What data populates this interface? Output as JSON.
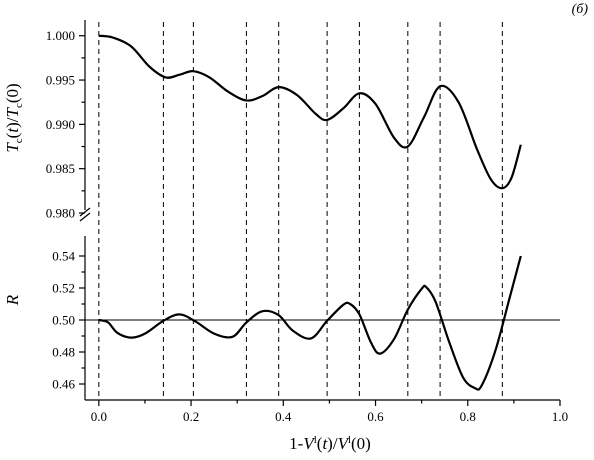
{
  "chart_data": {
    "type": "line",
    "panel_label": "(б)",
    "xlabel": "1-V^l(t)/V^l(0)",
    "x_ticks": [
      0.0,
      0.2,
      0.4,
      0.6,
      0.8,
      1.0
    ],
    "x_tick_labels": [
      "0.0",
      "0.2",
      "0.4",
      "0.6",
      "0.8",
      "1.0"
    ],
    "xlim": [
      -0.03,
      1.0
    ],
    "vertical_dashed_lines_x": [
      0.0,
      0.14,
      0.205,
      0.32,
      0.39,
      0.495,
      0.565,
      0.67,
      0.74,
      0.875
    ],
    "top_panel": {
      "ylabel": "T_c(t)/T_c(0)",
      "ylim": [
        0.98,
        1.002
      ],
      "y_ticks": [
        0.98,
        0.985,
        0.99,
        0.995,
        1.0
      ],
      "y_tick_labels": [
        "0.980",
        "0.985",
        "0.990",
        "0.995",
        "1.000"
      ],
      "series": [
        {
          "x": [
            0.0,
            0.03,
            0.07,
            0.11,
            0.145,
            0.175,
            0.205,
            0.24,
            0.28,
            0.32,
            0.355,
            0.39,
            0.43,
            0.47,
            0.495,
            0.53,
            0.565,
            0.6,
            0.64,
            0.67,
            0.705,
            0.74,
            0.78,
            0.82,
            0.85,
            0.875,
            0.895,
            0.915
          ],
          "y": [
            1.0,
            0.9998,
            0.9988,
            0.9965,
            0.9953,
            0.9956,
            0.996,
            0.9953,
            0.9937,
            0.9927,
            0.9932,
            0.9942,
            0.9933,
            0.9912,
            0.9905,
            0.9918,
            0.9935,
            0.9923,
            0.9885,
            0.9875,
            0.9908,
            0.9943,
            0.9925,
            0.9872,
            0.9838,
            0.9828,
            0.984,
            0.9877
          ]
        }
      ]
    },
    "bottom_panel": {
      "ylabel": "R",
      "ylim": [
        0.45,
        0.555
      ],
      "y_ticks": [
        0.46,
        0.48,
        0.5,
        0.52,
        0.54
      ],
      "y_tick_labels": [
        "0.46",
        "0.48",
        "0.50",
        "0.52",
        "0.54"
      ],
      "reference_line_y": 0.5,
      "series": [
        {
          "x": [
            0.0,
            0.02,
            0.04,
            0.07,
            0.1,
            0.14,
            0.175,
            0.21,
            0.25,
            0.29,
            0.32,
            0.355,
            0.39,
            0.42,
            0.46,
            0.495,
            0.53,
            0.545,
            0.565,
            0.59,
            0.61,
            0.64,
            0.67,
            0.7,
            0.71,
            0.73,
            0.76,
            0.79,
            0.815,
            0.83,
            0.86,
            0.89,
            0.915
          ],
          "y": [
            0.5,
            0.4985,
            0.492,
            0.489,
            0.4915,
            0.4995,
            0.5035,
            0.499,
            0.4915,
            0.4895,
            0.4985,
            0.5055,
            0.503,
            0.4935,
            0.4885,
            0.4995,
            0.5095,
            0.51,
            0.5035,
            0.486,
            0.479,
            0.488,
            0.5065,
            0.5195,
            0.5205,
            0.5115,
            0.486,
            0.464,
            0.4575,
            0.459,
            0.481,
            0.513,
            0.54
          ]
        }
      ]
    }
  }
}
